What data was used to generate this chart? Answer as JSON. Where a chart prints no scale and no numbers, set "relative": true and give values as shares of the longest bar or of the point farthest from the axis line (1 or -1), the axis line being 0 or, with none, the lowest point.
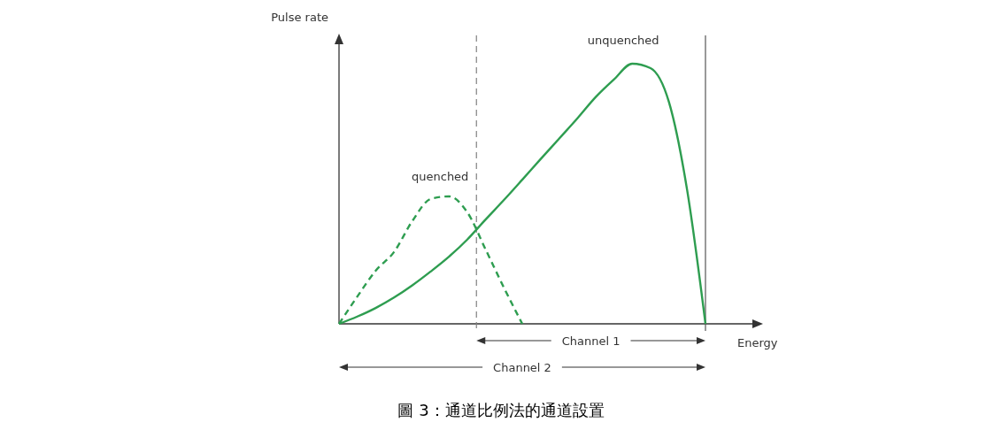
{
  "chart_data": {
    "type": "line",
    "relative": true,
    "title": "圖 3：通道比例法的通道設置",
    "xlabel": "Energy",
    "ylabel": "Pulse rate",
    "categories": [
      null,
      null,
      null,
      null,
      null,
      null,
      null,
      null,
      null,
      null,
      null,
      null,
      null,
      null,
      null,
      null,
      null,
      null,
      null,
      null,
      null
    ],
    "series": [
      {
        "name": "unquenched",
        "color": "#2e9d50",
        "line_style": "solid",
        "values": [
          0,
          0.028,
          0.061,
          0.101,
          0.148,
          0.201,
          0.258,
          0.324,
          0.401,
          0.476,
          0.554,
          0.633,
          0.711,
          0.789,
          0.871,
          0.939,
          1,
          0.983,
          0.854,
          0.514,
          0
        ]
      },
      {
        "name": "quenched",
        "color": "#2e9d50",
        "line_style": "dashed",
        "values": [
          0,
          0.105,
          0.204,
          0.276,
          0.395,
          0.48,
          0.49,
          0.429,
          0.286,
          0.139,
          0,
          null,
          null,
          null,
          null,
          null,
          null,
          null,
          null,
          null,
          null
        ]
      }
    ],
    "annotations": [
      "Channel 1",
      "Channel 2"
    ],
    "marker": "none",
    "grid": false,
    "legend": false
  }
}
